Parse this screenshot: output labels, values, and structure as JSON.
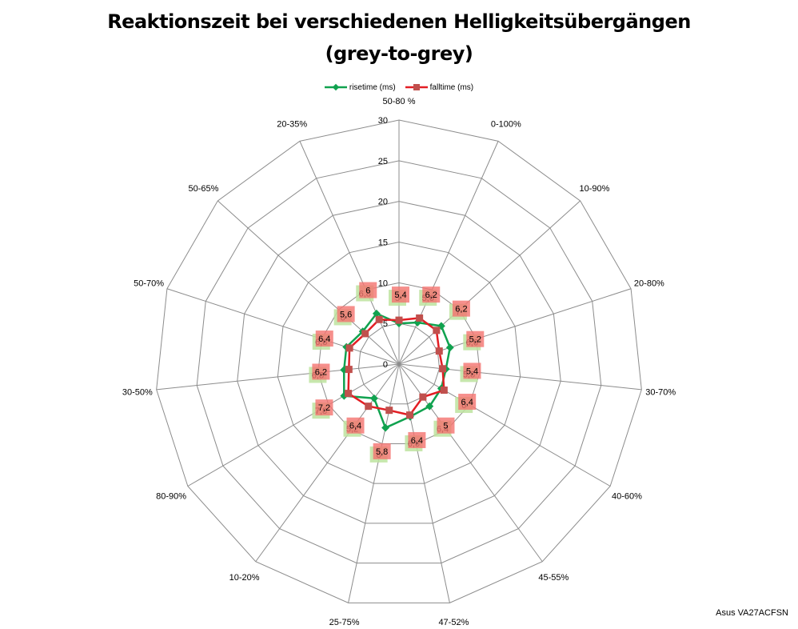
{
  "chart_data": {
    "type": "radar",
    "title": "Reaktionszeit bei verschiedenen Helligkeitsübergängen",
    "subtitle": "(grey-to-grey)",
    "rmin": 0,
    "rmax": 30,
    "rticks": [
      0,
      5,
      10,
      15,
      20,
      25,
      30
    ],
    "rtick_labels": [
      "0",
      "5",
      "10",
      "15",
      "20",
      "25",
      "30"
    ],
    "categories": [
      "50-80 %",
      "0-100%",
      "10-90%",
      "20-80%",
      "30-70%",
      "40-60%",
      "45-55%",
      "47-52%",
      "25-75%",
      "10-20%",
      "80-90%",
      "30-50%",
      "50-70%",
      "50-65%",
      "20-35%"
    ],
    "series": [
      {
        "name": "risetime (ms)",
        "color": "#10a24f",
        "label_bg": "#bde39f",
        "values": [
          5,
          5.6,
          7,
          6.6,
          5.8,
          6,
          6.4,
          6.6,
          8,
          5.2,
          7.8,
          6.8,
          6.8,
          6,
          6.8
        ],
        "labels": [
          "5",
          "5,6",
          "7",
          "6,6",
          "5,8",
          "6",
          "6,4",
          "6,6",
          "8",
          "5,2",
          "7,8",
          "6,8",
          "6,8",
          "6",
          "6,8"
        ]
      },
      {
        "name": "falltime (ms)",
        "color": "#e31e24",
        "label_bg": "#f4736f",
        "values": [
          5.4,
          6.2,
          6.2,
          5.2,
          5.4,
          6.4,
          5,
          6.4,
          5.8,
          6.4,
          7.2,
          6.2,
          6.4,
          5.6,
          6
        ],
        "labels": [
          "5,4",
          "6,2",
          "6,2",
          "5,2",
          "5,4",
          "6,4",
          "5",
          "6,4",
          "5,8",
          "6,4",
          "7,2",
          "6,2",
          "6,4",
          "5,6",
          "6"
        ]
      }
    ],
    "grid": true,
    "legend_position": "top"
  },
  "footer_text": "Asus VA27ACFSN"
}
